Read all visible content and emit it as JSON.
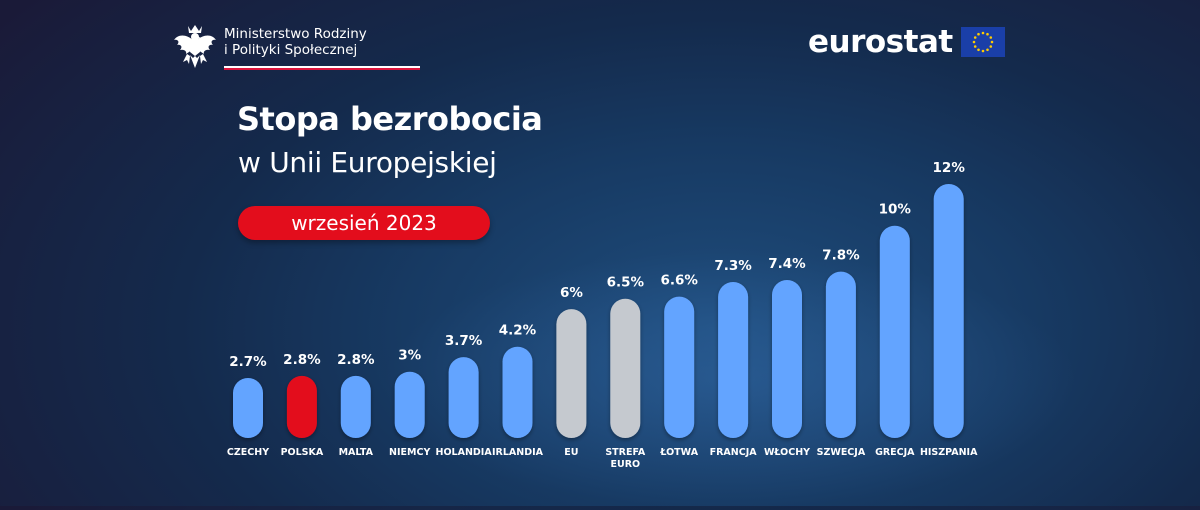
{
  "header": {
    "ministry_line1": "Ministerstwo Rodziny",
    "ministry_line2": "i Polityki Społecznej",
    "eurostat": "eurostat"
  },
  "title": "Stopa bezrobocia",
  "subtitle": "w Unii Europejskiej",
  "date_badge": "wrzesień 2023",
  "colors": {
    "default_bar": "#63a4ff",
    "highlight_bar": "#e30d1c",
    "aggregate_bar": "#c5c9cf",
    "badge": "#e30d1c"
  },
  "icons": [
    "polish-eagle-icon",
    "eu-flag-icon"
  ],
  "chart_data": {
    "type": "bar",
    "categories": [
      "CZECHY",
      "POLSKA",
      "MALTA",
      "NIEMCY",
      "HOLANDIA",
      "IRLANDIA",
      "EU",
      "STREFA EURO",
      "ŁOTWA",
      "FRANCJA",
      "WŁOCHY",
      "SZWECJA",
      "GRECJA",
      "HISZPANIA"
    ],
    "values": [
      2.7,
      2.8,
      2.8,
      3,
      3.7,
      4.2,
      6,
      6.5,
      6.6,
      7.3,
      7.4,
      7.8,
      10,
      12
    ],
    "value_labels": [
      "2.7%",
      "2.8%",
      "2.8%",
      "3%",
      "3.7%",
      "4.2%",
      "6%",
      "6.5%",
      "6.6%",
      "7.3%",
      "7.4%",
      "7.8%",
      "10%",
      "12%"
    ],
    "bar_kinds": [
      "default",
      "highlight",
      "default",
      "default",
      "default",
      "default",
      "aggregate",
      "aggregate",
      "default",
      "default",
      "default",
      "default",
      "default",
      "default"
    ],
    "title": "Stopa bezrobocia",
    "xlabel": "",
    "ylabel": "",
    "ylim": [
      0,
      12
    ],
    "grid": false,
    "legend": "none"
  }
}
